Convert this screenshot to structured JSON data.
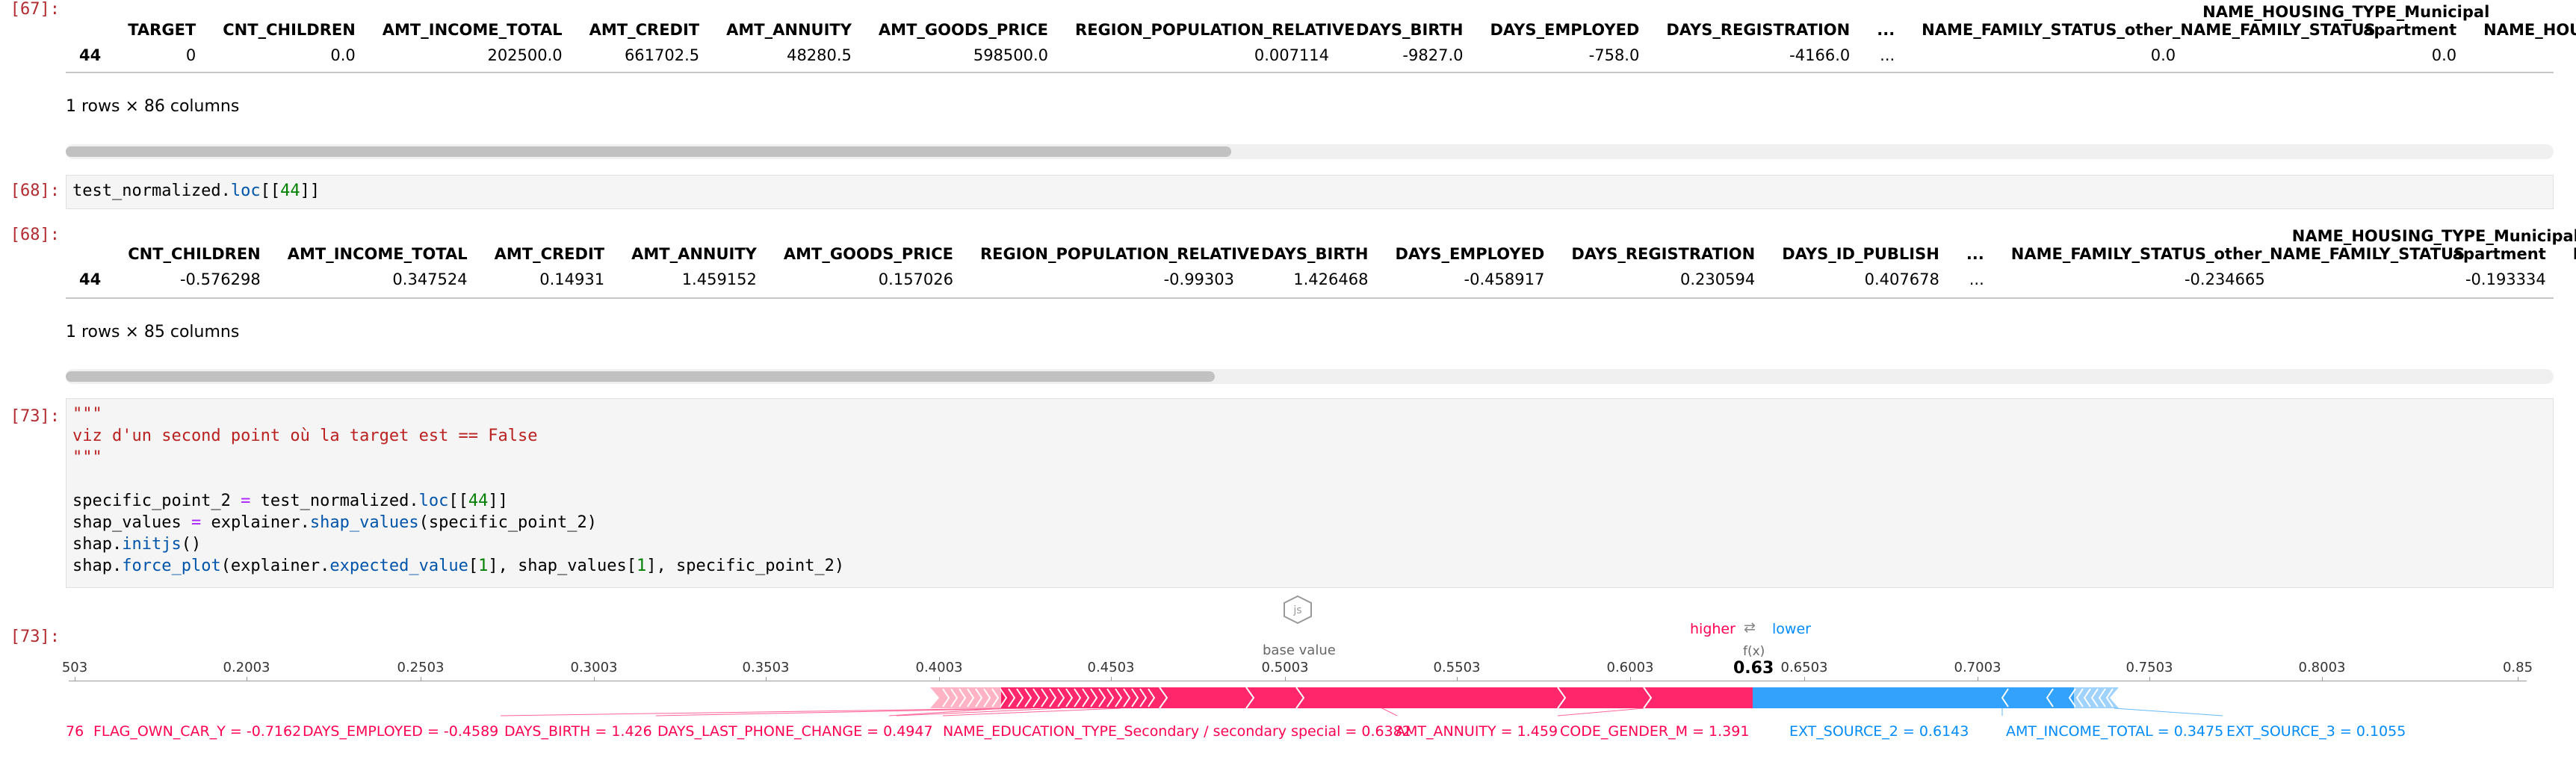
{
  "cells": {
    "c67": {
      "prompt": "[67]:",
      "columns": [
        "TARGET",
        "CNT_CHILDREN",
        "AMT_INCOME_TOTAL",
        "AMT_CREDIT",
        "AMT_ANNUITY",
        "AMT_GOODS_PRICE",
        "REGION_POPULATION_RELATIVE",
        "DAYS_BIRTH",
        "DAYS_EMPLOYED",
        "DAYS_REGISTRATION",
        "...",
        "NAME_FAMILY_STATUS_other_NAME_FAMILY_STATUS",
        "NAME_HOUSING_TYPE_Municipal apartment",
        "NAME_HOUSING_"
      ],
      "index": "44",
      "values": [
        "0",
        "0.0",
        "202500.0",
        "661702.5",
        "48280.5",
        "598500.0",
        "0.007114",
        "-9827.0",
        "-758.0",
        "-4166.0",
        "...",
        "0.0",
        "0.0",
        ""
      ],
      "shape": "1 rows × 86 columns"
    },
    "c68_in": {
      "prompt": "[68]:",
      "code_prefix": "test_normalized.",
      "code_fn": "loc",
      "code_open": "[[",
      "code_num": "44",
      "code_close": "]]"
    },
    "c68": {
      "prompt": "[68]:",
      "columns": [
        "CNT_CHILDREN",
        "AMT_INCOME_TOTAL",
        "AMT_CREDIT",
        "AMT_ANNUITY",
        "AMT_GOODS_PRICE",
        "REGION_POPULATION_RELATIVE",
        "DAYS_BIRTH",
        "DAYS_EMPLOYED",
        "DAYS_REGISTRATION",
        "DAYS_ID_PUBLISH",
        "...",
        "NAME_FAMILY_STATUS_other_NAME_FAMILY_STATUS",
        "NAME_HOUSING_TYPE_Municipal apartment",
        "NAME_"
      ],
      "index": "44",
      "values": [
        "-0.576298",
        "0.347524",
        "0.14931",
        "1.459152",
        "0.157026",
        "-0.99303",
        "1.426468",
        "-0.458917",
        "0.230594",
        "0.407678",
        "...",
        "-0.234665",
        "-0.193334",
        ""
      ],
      "shape": "1 rows × 85 columns"
    },
    "c73_in": {
      "prompt": "[73]:",
      "docstring_open": "\"\"\"",
      "docstring_text": "viz d'un second point où la target est == False",
      "docstring_close": "\"\"\"",
      "l1_a": "specific_point_2 ",
      "l1_b": "=",
      "l1_c": " test_normalized.",
      "l1_d": "loc",
      "l1_e": "[[",
      "l1_f": "44",
      "l1_g": "]]",
      "l2_a": "shap_values ",
      "l2_b": "=",
      "l2_c": " explainer.",
      "l2_d": "shap_values",
      "l2_e": "(specific_point_2)",
      "l3_a": "shap.",
      "l3_b": "initjs",
      "l3_c": "()",
      "l4_a": "shap.",
      "l4_b": "force_plot",
      "l4_c": "(explainer.",
      "l4_d": "expected_value",
      "l4_e": "[",
      "l4_f": "1",
      "l4_g": "], shap_values[",
      "l4_h": "1",
      "l4_i": "], specific_point_2)"
    },
    "c73_out": {
      "prompt": "[73]:"
    }
  },
  "force_plot": {
    "js_icon_text": "js",
    "higher_label": "higher",
    "arrows": "⇄",
    "lower_label": "lower",
    "base_value_label": "base value",
    "fx_label": "f(x)",
    "fx_value": "0.63",
    "base_value": 0.5003,
    "ticks": [
      "503",
      "0.2003",
      "0.2503",
      "0.3003",
      "0.3503",
      "0.4003",
      "0.4503",
      "0.5003",
      "0.5503",
      "0.6003",
      "0.6503",
      "0.7003",
      "0.7503",
      "0.8003",
      "0.85"
    ],
    "colors": {
      "positive": "#ff0051",
      "negative": "#008bfb"
    },
    "positive_features": [
      "76",
      "FLAG_OWN_CAR_Y = -0.7162",
      "DAYS_EMPLOYED = -0.4589",
      "DAYS_BIRTH = 1.426",
      "DAYS_LAST_PHONE_CHANGE = 0.4947",
      "NAME_EDUCATION_TYPE_Secondary / secondary special = 0.6382",
      "AMT_ANNUITY = 1.459",
      "CODE_GENDER_M = 1.391"
    ],
    "negative_features": [
      "EXT_SOURCE_2 = 0.6143",
      "AMT_INCOME_TOTAL = 0.3475",
      "EXT_SOURCE_3 = 0.1055"
    ]
  }
}
